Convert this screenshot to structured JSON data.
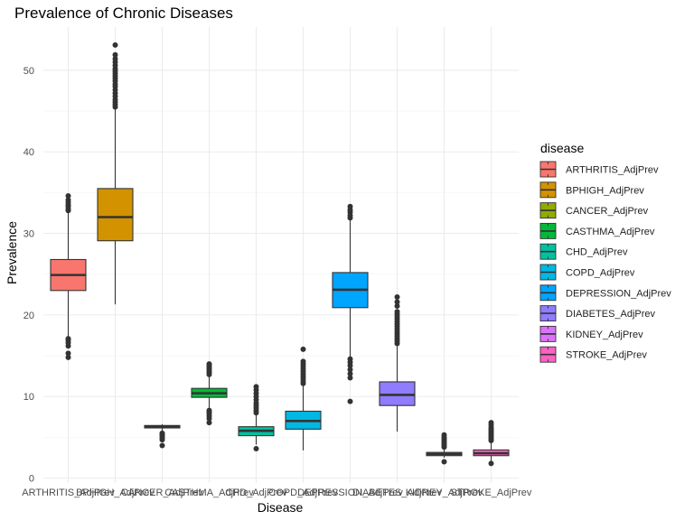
{
  "chart_data": {
    "type": "box",
    "title": "Prevalence of Chronic Diseases",
    "xlabel": "Disease",
    "ylabel": "Prevalence",
    "ylim": [
      -0.6,
      55.3
    ],
    "yticks": [
      0,
      10,
      20,
      30,
      40,
      50
    ],
    "grid": true,
    "legend": {
      "title": "disease",
      "position": "right"
    },
    "categories": [
      "ARTHRITIS_AdjPrev",
      "BPHIGH_AdjPrev",
      "CANCER_AdjPrev",
      "CASTHMA_AdjPrev",
      "CHD_AdjPrev",
      "COPD_AdjPrev",
      "DEPRESSION_AdjPrev",
      "DIABETES_AdjPrev",
      "KIDNEY_AdjPrev",
      "STROKE_AdjPrev"
    ],
    "colors": [
      "#F8766D",
      "#D39200",
      "#93AA00",
      "#00BA38",
      "#00C19F",
      "#00B9E3",
      "#00A5FF",
      "#8F7CFF",
      "#DB72FB",
      "#FF61C3"
    ],
    "series": [
      {
        "min": 17.4,
        "q1": 23.0,
        "median": 24.9,
        "q3": 26.8,
        "max": 32.6,
        "outliers": [
          14.8,
          15.3,
          16.2,
          16.6,
          16.9,
          17.1,
          32.8,
          33.0,
          33.3,
          33.5,
          33.8,
          34.1,
          34.6
        ]
      },
      {
        "min": 21.3,
        "q1": 29.1,
        "median": 32.0,
        "q3": 35.5,
        "max": 45.3,
        "outliers": [
          45.5,
          45.8,
          46.1,
          46.4,
          46.8,
          47.2,
          47.6,
          48.0,
          48.3,
          48.7,
          49.0,
          49.3,
          49.6,
          49.9,
          50.2,
          50.6,
          51.0,
          51.4,
          51.9,
          53.1
        ]
      },
      {
        "min": 5.6,
        "q1": 6.15,
        "median": 6.3,
        "q3": 6.45,
        "max": 6.6,
        "outliers": [
          4.0,
          4.7,
          4.9,
          5.1,
          5.3,
          5.4,
          5.5
        ]
      },
      {
        "min": 8.6,
        "q1": 9.9,
        "median": 10.4,
        "q3": 11.0,
        "max": 12.5,
        "outliers": [
          6.8,
          7.3,
          7.6,
          7.9,
          8.1,
          8.3,
          12.7,
          12.9,
          13.1,
          13.3,
          13.5,
          13.7,
          13.9,
          14.0
        ]
      },
      {
        "min": 4.1,
        "q1": 5.2,
        "median": 5.8,
        "q3": 6.3,
        "max": 7.8,
        "outliers": [
          3.6,
          8.0,
          8.3,
          8.6,
          8.9,
          9.2,
          9.6,
          10.0,
          10.4,
          10.8,
          11.2
        ]
      },
      {
        "min": 3.4,
        "q1": 6.0,
        "median": 7.0,
        "q3": 8.2,
        "max": 11.4,
        "outliers": [
          11.6,
          11.9,
          12.2,
          12.5,
          12.8,
          13.1,
          13.4,
          13.7,
          14.0,
          14.3,
          15.8
        ]
      },
      {
        "min": 14.8,
        "q1": 20.9,
        "median": 23.1,
        "q3": 25.2,
        "max": 31.6,
        "outliers": [
          9.4,
          12.3,
          12.8,
          13.3,
          13.8,
          14.2,
          14.6,
          31.9,
          32.2,
          32.6,
          32.9,
          33.3
        ]
      },
      {
        "min": 5.7,
        "q1": 8.9,
        "median": 10.2,
        "q3": 11.8,
        "max": 16.2,
        "outliers": [
          16.5,
          16.8,
          17.1,
          17.4,
          17.7,
          18.0,
          18.3,
          18.6,
          18.9,
          19.2,
          19.5,
          19.8,
          20.1,
          20.4,
          21.1,
          21.6,
          22.2
        ]
      },
      {
        "min": 2.5,
        "q1": 2.75,
        "median": 2.95,
        "q3": 3.15,
        "max": 3.6,
        "outliers": [
          2.0,
          3.8,
          4.0,
          4.2,
          4.4,
          4.6,
          4.8,
          5.0,
          5.3
        ]
      },
      {
        "min": 2.0,
        "q1": 2.75,
        "median": 3.05,
        "q3": 3.45,
        "max": 4.4,
        "outliers": [
          1.8,
          4.6,
          4.8,
          5.0,
          5.2,
          5.4,
          5.6,
          5.8,
          6.0,
          6.2,
          6.5,
          6.8
        ]
      }
    ]
  }
}
